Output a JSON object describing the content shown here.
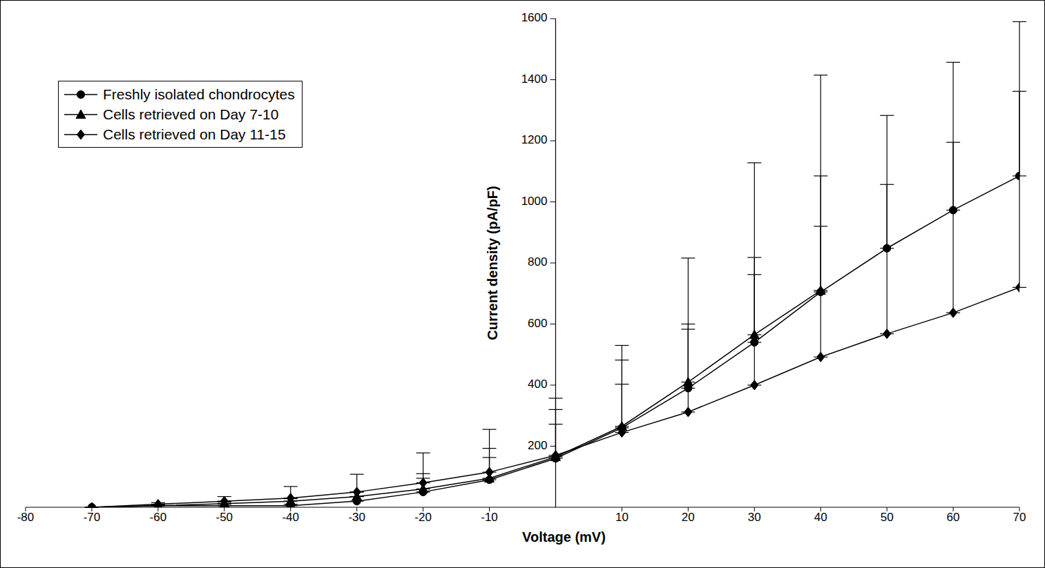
{
  "chart_data": {
    "type": "line",
    "x_label": "Voltage (mV)",
    "y_label": "Current density (pA/pF)",
    "x": [
      -70,
      -60,
      -50,
      -40,
      -30,
      -20,
      -10,
      0,
      10,
      20,
      30,
      40,
      50,
      60,
      70
    ],
    "xlim": [
      -80,
      70
    ],
    "xticks": [
      -80,
      -70,
      -60,
      -50,
      -40,
      -30,
      -20,
      -10,
      10,
      20,
      30,
      40,
      50,
      60,
      70
    ],
    "ylim": [
      0,
      1600
    ],
    "yticks": [
      200,
      400,
      600,
      800,
      1000,
      1200,
      1400,
      1600
    ],
    "legend": "upper left",
    "series": [
      {
        "name": "Freshly isolated chondrocytes",
        "color": "#000000",
        "marker": "circle",
        "values": [
          0,
          5,
          5,
          5,
          20,
          50,
          90,
          160,
          260,
          390,
          540,
          705,
          848,
          973,
          1085
        ],
        "errors": [
          0,
          0,
          5,
          5,
          15,
          60,
          103,
          197,
          270,
          426,
          588,
          710,
          435,
          484,
          505
        ]
      },
      {
        "name": "Cells retrieved on Day 7-10",
        "color": "#000000",
        "marker": "triangle",
        "values": [
          0,
          5,
          12,
          20,
          35,
          60,
          95,
          165,
          265,
          410,
          565,
          710,
          null,
          null,
          null
        ],
        "errors": [
          0,
          3,
          5,
          8,
          15,
          35,
          68,
          107,
          138,
          190,
          253,
          375,
          null,
          null,
          null
        ]
      },
      {
        "name": "Cells retrieved on Day 11-15",
        "color": "#000000",
        "marker": "diamond",
        "values": [
          0,
          10,
          20,
          30,
          50,
          80,
          115,
          170,
          245,
          312,
          400,
          492,
          568,
          637,
          720
        ],
        "errors": [
          0,
          5,
          15,
          38,
          58,
          98,
          140,
          150,
          237,
          271,
          362,
          428,
          489,
          558,
          642
        ]
      }
    ]
  }
}
